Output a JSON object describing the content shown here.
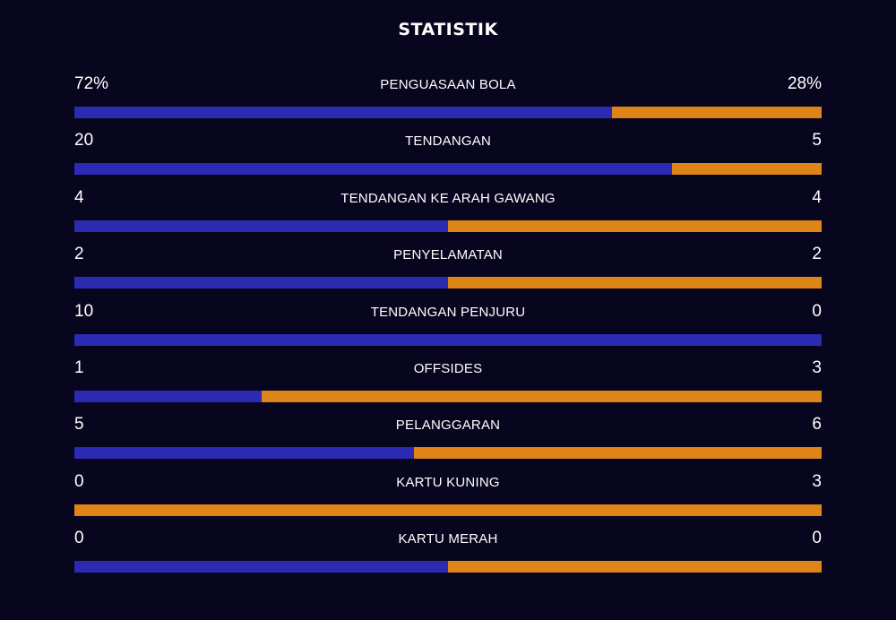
{
  "title": "STATISTIK",
  "colors": {
    "background": "#08061f",
    "home_bar": "#2a2ab3",
    "away_bar": "#df8518",
    "text": "#ffffff"
  },
  "stats": [
    {
      "label": "PENGUASAAN BOLA",
      "home": "72%",
      "away": "28%",
      "home_share": 0.72
    },
    {
      "label": "TENDANGAN",
      "home": "20",
      "away": "5",
      "home_share": 0.8
    },
    {
      "label": "TENDANGAN KE ARAH GAWANG",
      "home": "4",
      "away": "4",
      "home_share": 0.5
    },
    {
      "label": "PENYELAMATAN",
      "home": "2",
      "away": "2",
      "home_share": 0.5
    },
    {
      "label": "TENDANGAN PENJURU",
      "home": "10",
      "away": "0",
      "home_share": 1.0
    },
    {
      "label": "OFFSIDES",
      "home": "1",
      "away": "3",
      "home_share": 0.25
    },
    {
      "label": "PELANGGARAN",
      "home": "5",
      "away": "6",
      "home_share": 0.455
    },
    {
      "label": "KARTU KUNING",
      "home": "0",
      "away": "3",
      "home_share": 0.0
    },
    {
      "label": "KARTU MERAH",
      "home": "0",
      "away": "0",
      "home_share": 0.5
    }
  ]
}
